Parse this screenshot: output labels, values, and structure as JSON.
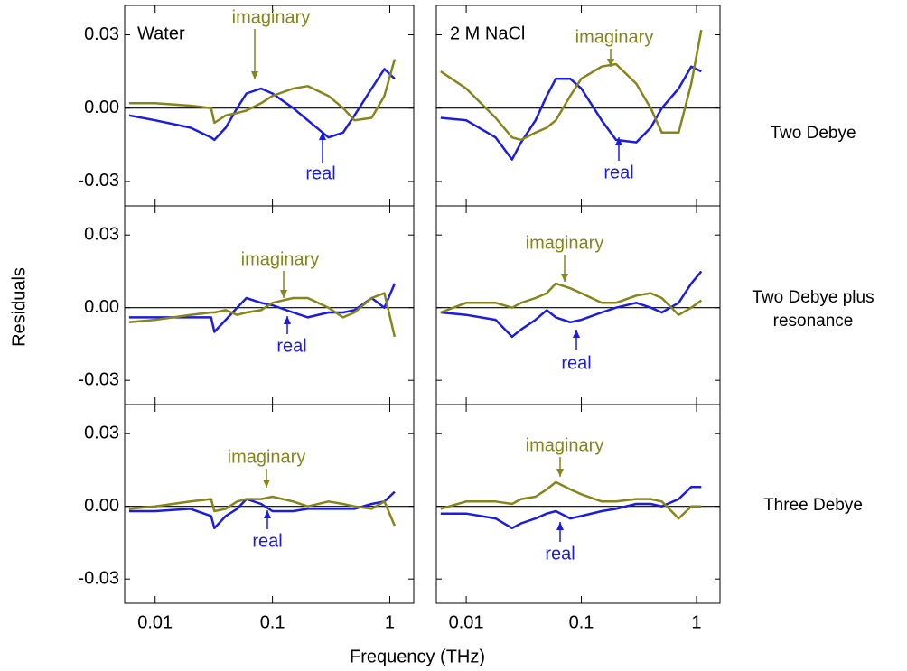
{
  "figure": {
    "ylabel": "Residuals",
    "xlabel": "Frequency (THz)",
    "row_labels": [
      [
        "Two Debye"
      ],
      [
        "Two Debye plus",
        "resonance"
      ],
      [
        "Three Debye"
      ]
    ]
  },
  "chart_data": [
    {
      "type": "line",
      "label": "Water",
      "xlog": true,
      "xlim": [
        0.0055,
        1.6
      ],
      "ylim": [
        -0.04,
        0.042
      ],
      "xticks": [
        0.01,
        0.1,
        1
      ],
      "yticks": [
        -0.03,
        {
          "value": 0,
          "label": "0.00"
        },
        0.03
      ],
      "x": [
        0.006,
        0.01,
        0.02,
        0.03,
        0.032,
        0.04,
        0.05,
        0.06,
        0.08,
        0.1,
        0.15,
        0.2,
        0.3,
        0.4,
        0.5,
        0.7,
        0.9,
        1.1
      ],
      "series": [
        {
          "name": "real",
          "color": "#1c1ce0",
          "values": [
            -0.003,
            -0.005,
            -0.008,
            -0.012,
            -0.013,
            -0.008,
            0.0,
            0.006,
            0.008,
            0.006,
            0.0,
            -0.005,
            -0.012,
            -0.01,
            -0.003,
            0.008,
            0.016,
            0.012
          ]
        },
        {
          "name": "imaginary",
          "color": "#85851a",
          "values": [
            0.002,
            0.002,
            0.001,
            0.0,
            -0.006,
            -0.003,
            -0.002,
            -0.001,
            0.002,
            0.005,
            0.008,
            0.009,
            0.005,
            0.0,
            -0.005,
            -0.004,
            0.005,
            0.02
          ]
        }
      ]
    },
    {
      "type": "line",
      "label": "2 M NaCl",
      "xlog": true,
      "xlim": [
        0.0055,
        1.6
      ],
      "ylim": [
        -0.04,
        0.042
      ],
      "xticks": [
        0.01,
        0.1,
        1
      ],
      "yticks": [
        -0.03,
        {
          "value": 0,
          "label": "0.00"
        },
        0.03
      ],
      "x": [
        0.006,
        0.01,
        0.018,
        0.025,
        0.03,
        0.04,
        0.05,
        0.06,
        0.08,
        0.1,
        0.15,
        0.2,
        0.3,
        0.4,
        0.5,
        0.7,
        0.9,
        1.1
      ],
      "series": [
        {
          "name": "real",
          "color": "#1c1ce0",
          "values": [
            -0.004,
            -0.005,
            -0.012,
            -0.021,
            -0.014,
            -0.005,
            0.005,
            0.012,
            0.012,
            0.008,
            -0.005,
            -0.013,
            -0.014,
            -0.008,
            0.0,
            0.008,
            0.017,
            0.015
          ]
        },
        {
          "name": "imaginary",
          "color": "#85851a",
          "values": [
            0.015,
            0.008,
            -0.004,
            -0.012,
            -0.013,
            -0.01,
            -0.008,
            -0.005,
            0.005,
            0.012,
            0.017,
            0.018,
            0.01,
            0.0,
            -0.01,
            -0.01,
            0.01,
            0.032
          ]
        }
      ]
    },
    {
      "type": "line",
      "xlog": true,
      "xlim": [
        0.0055,
        1.6
      ],
      "ylim": [
        -0.04,
        0.042
      ],
      "xticks": [
        0.01,
        0.1,
        1
      ],
      "yticks": [
        -0.03,
        {
          "value": 0,
          "label": "0.00"
        },
        0.03
      ],
      "x": [
        0.006,
        0.01,
        0.02,
        0.03,
        0.032,
        0.04,
        0.05,
        0.06,
        0.08,
        0.1,
        0.15,
        0.2,
        0.3,
        0.4,
        0.5,
        0.7,
        0.9,
        1.1
      ],
      "series": [
        {
          "name": "real",
          "color": "#1c1ce0",
          "values": [
            -0.004,
            -0.004,
            -0.004,
            -0.004,
            -0.01,
            -0.005,
            0.0,
            0.004,
            0.002,
            0.001,
            -0.002,
            -0.004,
            -0.002,
            -0.002,
            -0.001,
            0.004,
            0.0,
            0.01
          ]
        },
        {
          "name": "imaginary",
          "color": "#85851a",
          "values": [
            -0.006,
            -0.005,
            -0.003,
            -0.002,
            -0.002,
            -0.001,
            -0.003,
            -0.002,
            -0.001,
            0.002,
            0.004,
            0.004,
            0.0,
            -0.004,
            -0.002,
            0.004,
            0.006,
            -0.012
          ]
        }
      ]
    },
    {
      "type": "line",
      "xlog": true,
      "xlim": [
        0.0055,
        1.6
      ],
      "ylim": [
        -0.04,
        0.042
      ],
      "xticks": [
        0.01,
        0.1,
        1
      ],
      "yticks": [
        -0.03,
        {
          "value": 0,
          "label": "0.00"
        },
        0.03
      ],
      "x": [
        0.006,
        0.01,
        0.018,
        0.025,
        0.03,
        0.04,
        0.05,
        0.06,
        0.08,
        0.1,
        0.15,
        0.2,
        0.3,
        0.4,
        0.5,
        0.7,
        0.9,
        1.1
      ],
      "series": [
        {
          "name": "real",
          "color": "#1c1ce0",
          "values": [
            -0.002,
            -0.003,
            -0.005,
            -0.012,
            -0.009,
            -0.005,
            -0.001,
            -0.004,
            -0.006,
            -0.005,
            -0.002,
            0.0,
            0.002,
            0.0,
            -0.002,
            0.002,
            0.01,
            0.015
          ]
        },
        {
          "name": "imaginary",
          "color": "#85851a",
          "values": [
            -0.002,
            0.002,
            0.002,
            0.0,
            0.002,
            0.004,
            0.006,
            0.01,
            0.008,
            0.006,
            0.002,
            0.002,
            0.005,
            0.006,
            0.004,
            -0.003,
            0.0,
            0.003
          ]
        }
      ]
    },
    {
      "type": "line",
      "xlog": true,
      "xlim": [
        0.0055,
        1.6
      ],
      "ylim": [
        -0.04,
        0.042
      ],
      "xticks": [
        0.01,
        0.1,
        1
      ],
      "yticks": [
        -0.03,
        {
          "value": 0,
          "label": "0.00"
        },
        0.03
      ],
      "x": [
        0.006,
        0.01,
        0.02,
        0.03,
        0.032,
        0.04,
        0.05,
        0.06,
        0.08,
        0.1,
        0.15,
        0.2,
        0.3,
        0.4,
        0.5,
        0.7,
        0.9,
        1.1
      ],
      "series": [
        {
          "name": "real",
          "color": "#1c1ce0",
          "values": [
            -0.002,
            -0.002,
            -0.001,
            -0.004,
            -0.009,
            -0.004,
            -0.001,
            0.003,
            0.001,
            -0.002,
            -0.002,
            -0.001,
            -0.001,
            -0.001,
            -0.001,
            0.001,
            0.002,
            0.006
          ]
        },
        {
          "name": "imaginary",
          "color": "#85851a",
          "values": [
            -0.001,
            0.0,
            0.002,
            0.003,
            -0.002,
            -0.001,
            0.002,
            0.003,
            0.003,
            0.004,
            0.002,
            0.0,
            0.002,
            0.001,
            0.0,
            -0.001,
            0.002,
            -0.008
          ]
        }
      ]
    },
    {
      "type": "line",
      "xlog": true,
      "xlim": [
        0.0055,
        1.6
      ],
      "ylim": [
        -0.04,
        0.042
      ],
      "xticks": [
        0.01,
        0.1,
        1
      ],
      "yticks": [
        -0.03,
        {
          "value": 0,
          "label": "0.00"
        },
        0.03
      ],
      "x": [
        0.006,
        0.01,
        0.018,
        0.025,
        0.03,
        0.04,
        0.05,
        0.06,
        0.08,
        0.1,
        0.15,
        0.2,
        0.3,
        0.4,
        0.5,
        0.7,
        0.9,
        1.1
      ],
      "series": [
        {
          "name": "real",
          "color": "#1c1ce0",
          "values": [
            -0.003,
            -0.003,
            -0.005,
            -0.009,
            -0.007,
            -0.005,
            -0.003,
            -0.002,
            -0.005,
            -0.004,
            -0.002,
            -0.001,
            0.001,
            0.001,
            0.0,
            0.003,
            0.008,
            0.008
          ]
        },
        {
          "name": "imaginary",
          "color": "#85851a",
          "values": [
            -0.001,
            0.002,
            0.002,
            0.001,
            0.003,
            0.004,
            0.007,
            0.01,
            0.007,
            0.005,
            0.002,
            0.002,
            0.003,
            0.003,
            0.002,
            -0.005,
            0.0,
            0.0
          ]
        }
      ]
    }
  ]
}
